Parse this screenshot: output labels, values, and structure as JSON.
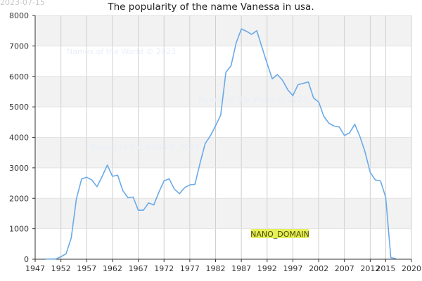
{
  "stamp": "2023-07-15",
  "title": "The popularity of the name Vanessa in usa.",
  "watermark": "Names of the World © 2023",
  "logo_text": "NANO_DOMAIN",
  "colors": {
    "line": "#69aae8",
    "band": "#f2f2f2",
    "grid": "#cfcfcf",
    "axis": "#333333",
    "logo_text": "#4a4a00",
    "logo_bg": "#e6f058"
  },
  "chart_data": {
    "type": "line",
    "title": "The popularity of the name Vanessa in usa.",
    "xlabel": "",
    "ylabel": "",
    "xlim": [
      1947,
      2020
    ],
    "ylim": [
      0,
      8000
    ],
    "x_ticks": [
      1947,
      1952,
      1957,
      1962,
      1967,
      1972,
      1977,
      1982,
      1987,
      1992,
      1997,
      2002,
      2007,
      2012,
      2015,
      2020
    ],
    "y_ticks": [
      0,
      1000,
      2000,
      3000,
      4000,
      5000,
      6000,
      7000,
      8000
    ],
    "grid": true,
    "series": [
      {
        "name": "",
        "x": [
          1949,
          1950,
          1951,
          1952,
          1953,
          1954,
          1955,
          1956,
          1957,
          1958,
          1959,
          1960,
          1961,
          1962,
          1963,
          1964,
          1965,
          1966,
          1967,
          1968,
          1969,
          1970,
          1971,
          1972,
          1973,
          1974,
          1975,
          1976,
          1977,
          1978,
          1979,
          1980,
          1981,
          1982,
          1983,
          1984,
          1985,
          1986,
          1987,
          1988,
          1989,
          1990,
          1991,
          1992,
          1993,
          1994,
          1995,
          1996,
          1997,
          1998,
          1999,
          2000,
          2001,
          2002,
          2003,
          2004,
          2005,
          2006,
          2007,
          2008,
          2009,
          2010,
          2011,
          2012,
          2013,
          2014,
          2015,
          2016,
          2017
        ],
        "values": [
          5,
          8,
          10,
          80,
          180,
          700,
          1980,
          2630,
          2690,
          2600,
          2380,
          2720,
          3090,
          2720,
          2760,
          2250,
          2020,
          2040,
          1610,
          1610,
          1850,
          1780,
          2200,
          2570,
          2640,
          2300,
          2150,
          2350,
          2440,
          2460,
          3160,
          3800,
          4050,
          4380,
          4730,
          6140,
          6350,
          7100,
          7560,
          7480,
          7380,
          7500,
          6950,
          6420,
          5920,
          6060,
          5870,
          5560,
          5370,
          5730,
          5770,
          5820,
          5290,
          5160,
          4690,
          4460,
          4370,
          4340,
          4060,
          4150,
          4430,
          4030,
          3520,
          2850,
          2600,
          2570,
          2030,
          50,
          20
        ],
        "color": "#69aae8"
      }
    ]
  }
}
